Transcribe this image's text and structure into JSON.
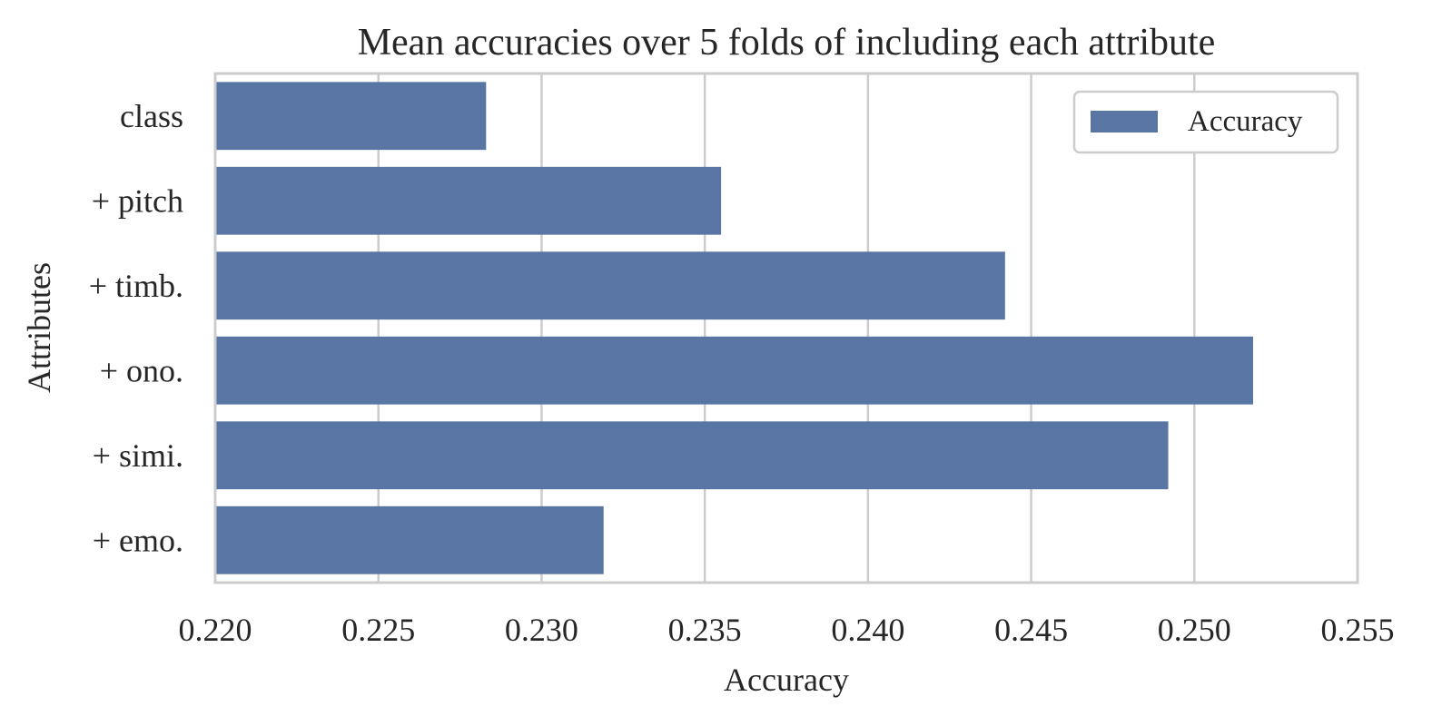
{
  "chart_data": {
    "type": "bar",
    "orientation": "horizontal",
    "title": "Mean accuracies over 5 folds of including each attribute",
    "xlabel": "Accuracy",
    "ylabel": "Attributes",
    "categories": [
      "class",
      "+ pitch",
      "+ timb.",
      "+ ono.",
      "+ simi.",
      "+ emo."
    ],
    "series": [
      {
        "name": "Accuracy",
        "values": [
          0.2283,
          0.2355,
          0.2442,
          0.2518,
          0.2492,
          0.2319
        ],
        "color": "#5975a4"
      }
    ],
    "xlim": [
      0.22,
      0.255
    ],
    "xticks": [
      "0.220",
      "0.225",
      "0.230",
      "0.235",
      "0.240",
      "0.245",
      "0.250",
      "0.255"
    ],
    "grid": "vertical",
    "legend_position": "upper-right"
  }
}
